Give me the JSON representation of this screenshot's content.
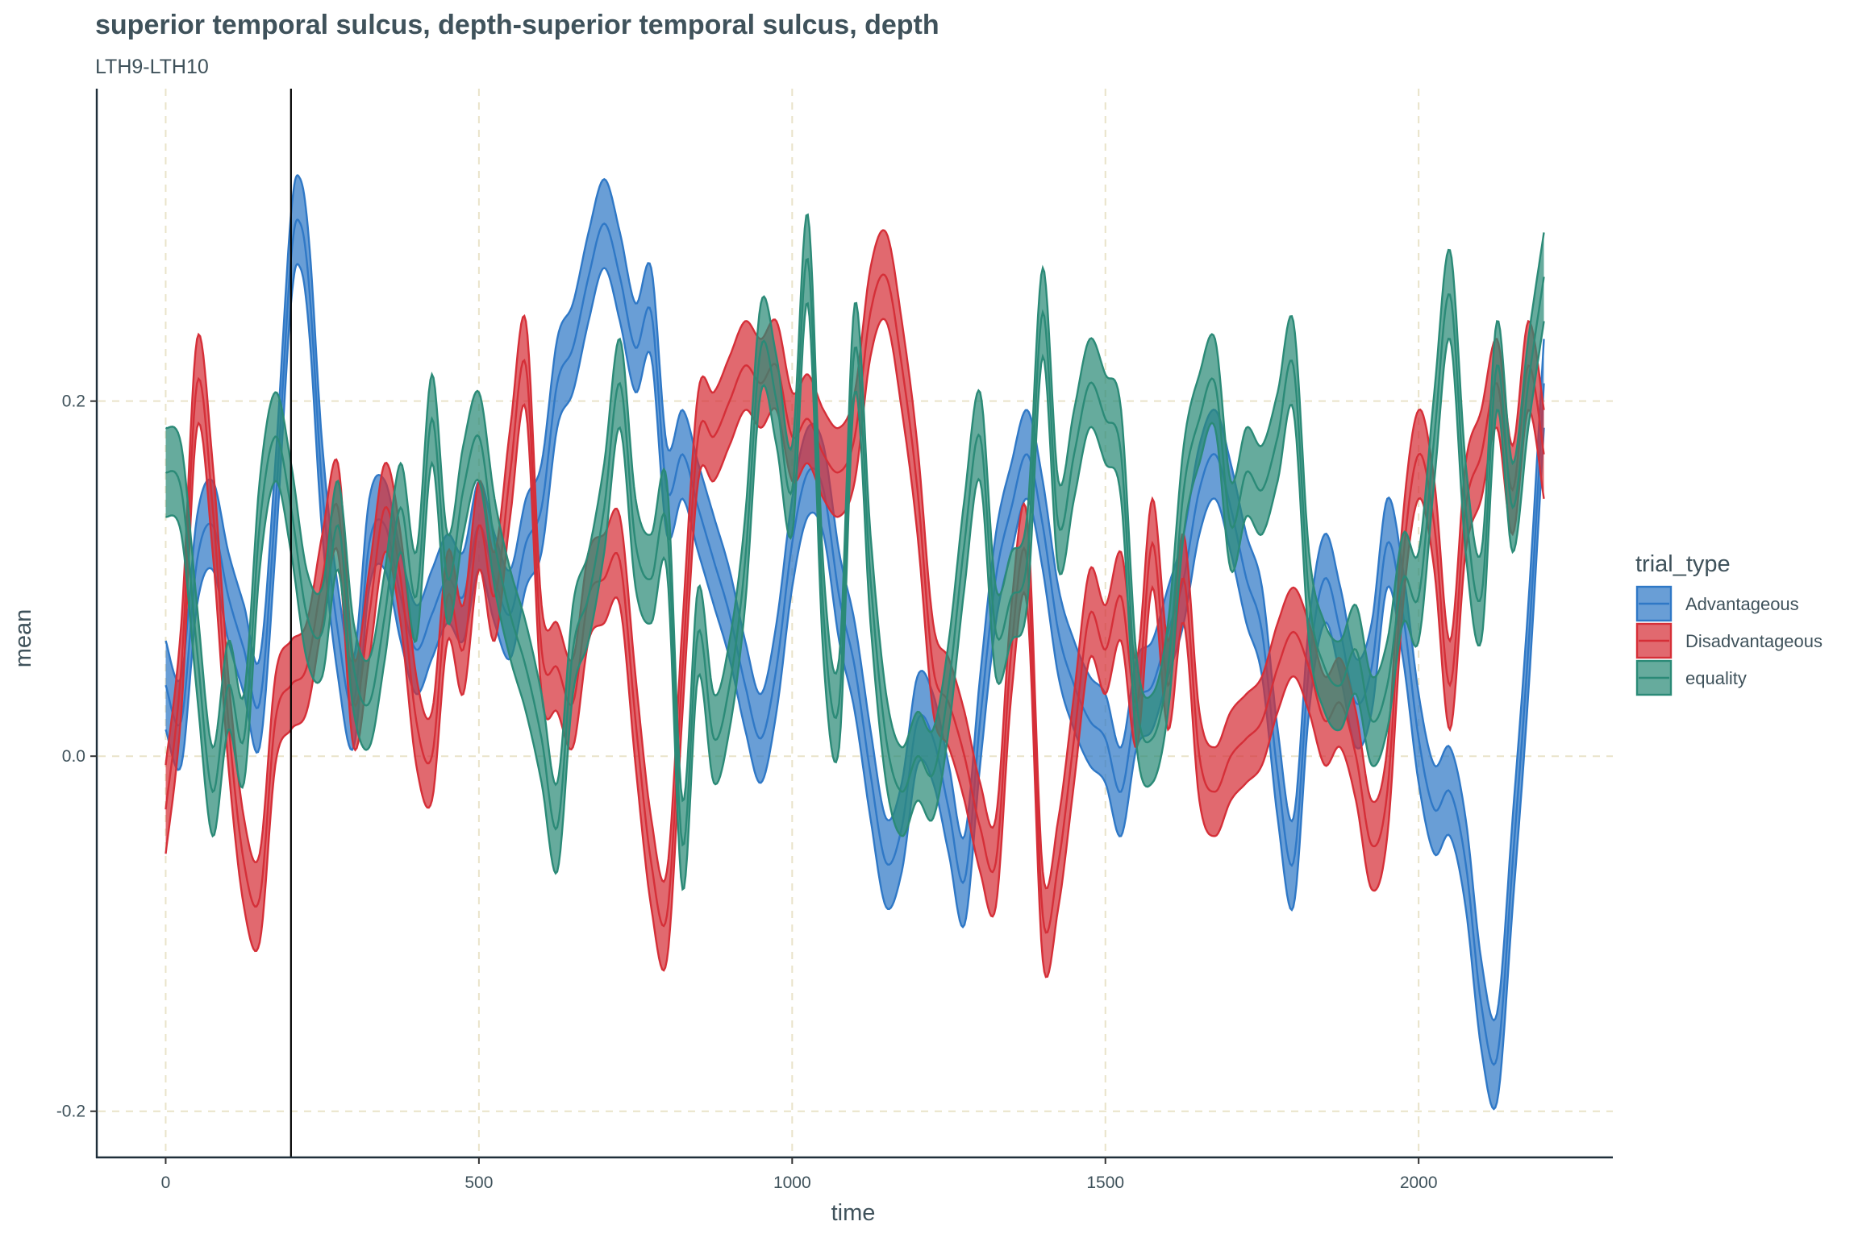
{
  "chart_data": {
    "type": "area",
    "title": "superior temporal sulcus, depth-superior temporal sulcus, depth",
    "subtitle": "LTH9-LTH10",
    "xlabel": "time",
    "ylabel": "mean",
    "xlim": [
      -110,
      2310
    ],
    "ylim": [
      -0.226,
      0.376
    ],
    "x_ticks": [
      0,
      500,
      1000,
      1500,
      2000
    ],
    "x_tick_labels": [
      "0",
      "500",
      "1000",
      "1500",
      "2000"
    ],
    "y_ticks": [
      -0.2,
      0.0,
      0.2
    ],
    "y_tick_labels": [
      "-0.2",
      "0.0",
      "0.2"
    ],
    "grid": true,
    "vline_x": 200,
    "legend": {
      "title": "trial_type",
      "position": "right"
    },
    "band_half_width": 0.025,
    "series": [
      {
        "name": "Advantageous",
        "color": "#2f78c6",
        "x": [
          0,
          25,
          50,
          75,
          100,
          125,
          150,
          175,
          200,
          215,
          230,
          250,
          275,
          300,
          325,
          350,
          375,
          400,
          425,
          450,
          475,
          500,
          525,
          550,
          575,
          600,
          625,
          650,
          675,
          700,
          725,
          750,
          775,
          800,
          825,
          850,
          875,
          900,
          925,
          950,
          975,
          1000,
          1025,
          1050,
          1075,
          1100,
          1125,
          1150,
          1175,
          1200,
          1225,
          1250,
          1275,
          1300,
          1325,
          1350,
          1375,
          1400,
          1425,
          1450,
          1475,
          1500,
          1525,
          1550,
          1575,
          1600,
          1625,
          1650,
          1675,
          1700,
          1725,
          1750,
          1775,
          1800,
          1825,
          1850,
          1875,
          1900,
          1925,
          1950,
          1975,
          2000,
          2025,
          2050,
          2075,
          2100,
          2125,
          2150,
          2175,
          2200
        ],
        "values": [
          0.04,
          0.02,
          0.11,
          0.13,
          0.09,
          0.06,
          0.03,
          0.14,
          0.28,
          0.3,
          0.26,
          0.15,
          0.07,
          0.03,
          0.12,
          0.13,
          0.09,
          0.06,
          0.08,
          0.1,
          0.09,
          0.13,
          0.1,
          0.08,
          0.12,
          0.14,
          0.21,
          0.23,
          0.27,
          0.3,
          0.27,
          0.23,
          0.25,
          0.15,
          0.17,
          0.14,
          0.11,
          0.08,
          0.04,
          0.01,
          0.05,
          0.12,
          0.16,
          0.15,
          0.09,
          0.05,
          -0.01,
          -0.06,
          -0.04,
          0.02,
          0.01,
          -0.03,
          -0.07,
          0.02,
          0.1,
          0.14,
          0.17,
          0.13,
          0.07,
          0.04,
          0.02,
          0.01,
          -0.02,
          0.03,
          0.04,
          0.07,
          0.1,
          0.15,
          0.17,
          0.14,
          0.1,
          0.07,
          -0.01,
          -0.06,
          0.05,
          0.1,
          0.07,
          0.03,
          0.05,
          0.12,
          0.08,
          0.01,
          -0.03,
          -0.02,
          -0.06,
          -0.14,
          -0.17,
          -0.06,
          0.06,
          0.21
        ]
      },
      {
        "name": "Disadvantageous",
        "color": "#d52f38",
        "x": [
          0,
          25,
          50,
          75,
          100,
          125,
          150,
          175,
          200,
          225,
          250,
          275,
          300,
          325,
          350,
          375,
          400,
          425,
          450,
          475,
          500,
          525,
          550,
          575,
          600,
          625,
          650,
          675,
          700,
          725,
          750,
          775,
          800,
          825,
          850,
          875,
          900,
          925,
          950,
          975,
          1000,
          1025,
          1050,
          1075,
          1100,
          1125,
          1150,
          1175,
          1200,
          1225,
          1250,
          1275,
          1300,
          1325,
          1350,
          1375,
          1400,
          1425,
          1450,
          1475,
          1500,
          1525,
          1550,
          1575,
          1600,
          1625,
          1650,
          1675,
          1700,
          1725,
          1750,
          1775,
          1800,
          1825,
          1850,
          1875,
          1900,
          1925,
          1950,
          1975,
          2000,
          2025,
          2050,
          2075,
          2100,
          2125,
          2150,
          2175,
          2200
        ],
        "values": [
          -0.03,
          0.05,
          0.21,
          0.14,
          0.02,
          -0.06,
          -0.08,
          0.02,
          0.04,
          0.05,
          0.1,
          0.14,
          0.03,
          0.08,
          0.14,
          0.1,
          0.02,
          0.0,
          0.09,
          0.06,
          0.13,
          0.09,
          0.16,
          0.22,
          0.06,
          0.05,
          0.03,
          0.09,
          0.1,
          0.11,
          0.02,
          -0.06,
          -0.09,
          0.05,
          0.18,
          0.18,
          0.2,
          0.22,
          0.21,
          0.22,
          0.18,
          0.19,
          0.17,
          0.16,
          0.18,
          0.25,
          0.27,
          0.22,
          0.15,
          0.05,
          0.03,
          0.0,
          -0.04,
          -0.06,
          0.06,
          0.11,
          -0.09,
          -0.06,
          0.01,
          0.08,
          0.06,
          0.09,
          0.03,
          0.12,
          0.04,
          0.1,
          0.0,
          -0.02,
          0.0,
          0.01,
          0.02,
          0.05,
          0.07,
          0.05,
          0.02,
          0.03,
          0.0,
          -0.05,
          -0.02,
          0.11,
          0.17,
          0.13,
          0.04,
          0.14,
          0.17,
          0.21,
          0.15,
          0.22,
          0.17
        ]
      },
      {
        "name": "equality",
        "color": "#2b8a77",
        "x": [
          0,
          25,
          50,
          75,
          100,
          125,
          150,
          175,
          200,
          225,
          250,
          275,
          300,
          325,
          350,
          375,
          400,
          425,
          450,
          475,
          500,
          525,
          550,
          575,
          600,
          625,
          650,
          675,
          700,
          725,
          750,
          775,
          800,
          825,
          850,
          875,
          900,
          925,
          950,
          975,
          1000,
          1025,
          1050,
          1075,
          1100,
          1125,
          1150,
          1175,
          1200,
          1225,
          1250,
          1275,
          1300,
          1325,
          1350,
          1375,
          1400,
          1425,
          1450,
          1475,
          1500,
          1525,
          1550,
          1575,
          1600,
          1625,
          1650,
          1675,
          1700,
          1725,
          1750,
          1775,
          1800,
          1825,
          1850,
          1875,
          1900,
          1925,
          1950,
          1975,
          2000,
          2025,
          2050,
          2075,
          2100,
          2125,
          2150,
          2175,
          2200
        ],
        "values": [
          0.16,
          0.15,
          0.06,
          -0.02,
          0.04,
          0.01,
          0.13,
          0.18,
          0.14,
          0.08,
          0.07,
          0.13,
          0.05,
          0.03,
          0.08,
          0.14,
          0.09,
          0.19,
          0.1,
          0.15,
          0.18,
          0.12,
          0.08,
          0.05,
          0.01,
          -0.04,
          0.06,
          0.09,
          0.14,
          0.21,
          0.12,
          0.1,
          0.13,
          -0.05,
          0.07,
          0.01,
          0.04,
          0.11,
          0.23,
          0.2,
          0.15,
          0.28,
          0.08,
          0.03,
          0.23,
          0.1,
          0.01,
          -0.02,
          0.0,
          -0.01,
          0.04,
          0.12,
          0.18,
          0.07,
          0.09,
          0.11,
          0.25,
          0.13,
          0.17,
          0.21,
          0.19,
          0.17,
          0.03,
          0.01,
          0.05,
          0.15,
          0.19,
          0.21,
          0.13,
          0.16,
          0.15,
          0.18,
          0.22,
          0.09,
          0.05,
          0.04,
          0.06,
          0.02,
          0.04,
          0.1,
          0.09,
          0.18,
          0.26,
          0.14,
          0.09,
          0.22,
          0.14,
          0.21,
          0.27
        ]
      }
    ]
  }
}
